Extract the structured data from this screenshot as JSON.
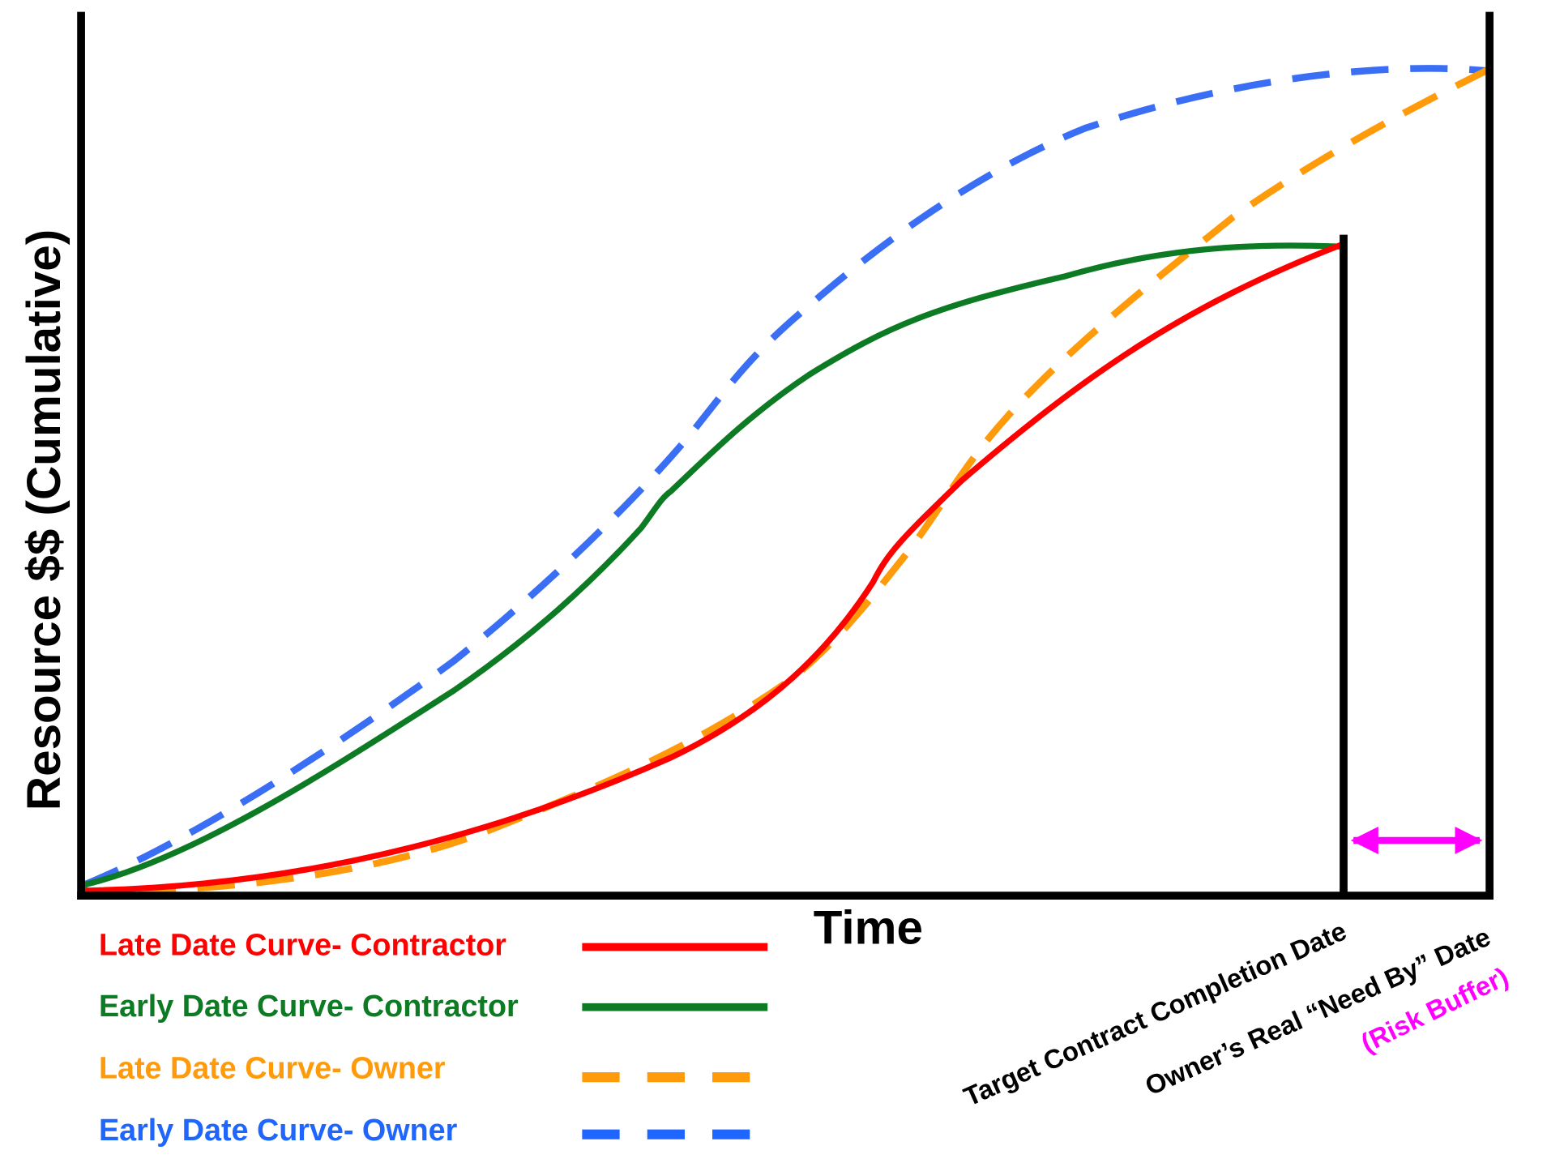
{
  "axes": {
    "y_label": "Resource $$ (Cumulative)",
    "x_label": "Time"
  },
  "legend": {
    "items": [
      {
        "label": "Late Date Curve- Contractor",
        "color": "#ff0000"
      },
      {
        "label": "Early Date Curve- Contractor",
        "color": "#0d7a24"
      },
      {
        "label": "Late Date Curve- Owner",
        "color": "#ff9a0a"
      },
      {
        "label": "Early Date Curve- Owner",
        "color": "#1f66ff"
      }
    ]
  },
  "annotations": {
    "completion": "Target Contract Completion Date",
    "need_by": "Owner’s Real “Need By” Date",
    "risk_buffer": "(Risk Buffer)"
  }
}
